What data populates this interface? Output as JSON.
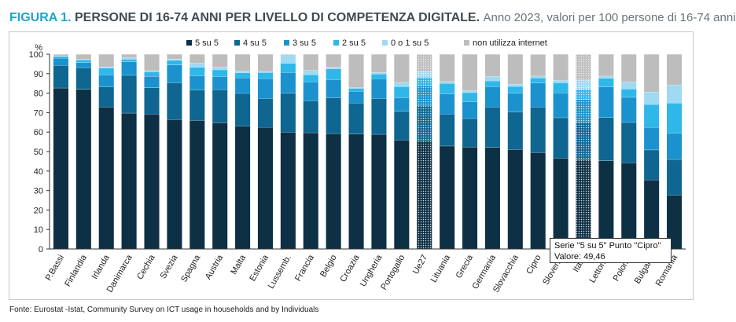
{
  "header": {
    "figure_label": "FIGURA 1.",
    "title": "PERSONE DI 16-74 ANNI PER LIVELLO DI COMPETENZA DIGITALE.",
    "subtitle": "Anno 2023, valori per 100 persone di 16-74 anni"
  },
  "source": "Fonte: Eurostat -Istat, Community Survey on ICT usage in households and by Individuals",
  "tooltip": {
    "line1": "Serie \"5 su 5\" Punto \"Cipro\"",
    "line2": "Valore: 49,46"
  },
  "chart_data": {
    "type": "bar",
    "stacked": true,
    "ylabel": "%",
    "ylim": [
      0,
      100
    ],
    "yticks": [
      "0",
      "10",
      "20",
      "30",
      "40",
      "50",
      "60",
      "70",
      "80",
      "90",
      "100"
    ],
    "grid": false,
    "legend_position": "top",
    "highlighted_categories": [
      "Ue27",
      "Italia"
    ],
    "categories": [
      "P.Bassi",
      "Finlandia",
      "Irlanda",
      "Danimarca",
      "Cechia",
      "Svezia",
      "Spagna",
      "Austria",
      "Malta",
      "Estonia",
      "Lussemb.",
      "Francia",
      "Belgio",
      "Croazia",
      "Ungheria",
      "Portogallo",
      "Ue27",
      "Lituania",
      "Grecia",
      "Germania",
      "Slovacchia",
      "Cipro",
      "Slovenia",
      "Italia",
      "Lettonia",
      "Polonia",
      "Bulgaria",
      "Romania"
    ],
    "series": [
      {
        "name": "5 su 5",
        "color": "#0d3045",
        "values": [
          82.7,
          82.0,
          72.9,
          69.8,
          69.3,
          66.5,
          66.0,
          64.8,
          63.0,
          62.5,
          60.0,
          59.7,
          59.3,
          59.0,
          58.9,
          56.0,
          55.6,
          52.9,
          52.4,
          52.2,
          51.2,
          49.46,
          46.7,
          45.8,
          45.3,
          44.3,
          35.5,
          27.7
        ]
      },
      {
        "name": "4 su 5",
        "color": "#0e6691",
        "values": [
          11.6,
          11.0,
          10.4,
          19.4,
          13.5,
          18.8,
          15.6,
          17.0,
          16.9,
          14.8,
          20.0,
          16.5,
          18.3,
          15.9,
          18.4,
          14.7,
          18.1,
          16.3,
          14.6,
          20.7,
          19.2,
          23.5,
          20.7,
          19.3,
          22.2,
          20.7,
          15.4,
          18.3
        ]
      },
      {
        "name": "3 su 5",
        "color": "#1b92cd",
        "values": [
          3.7,
          2.7,
          6.2,
          6.9,
          5.9,
          9.2,
          7.4,
          6.8,
          8.0,
          10.2,
          10.7,
          9.6,
          9.3,
          6.0,
          10.1,
          7.0,
          10.2,
          10.4,
          8.7,
          10.5,
          9.6,
          12.3,
          12.8,
          11.7,
          15.7,
          12.9,
          11.5,
          13.5
        ]
      },
      {
        "name": "2 su 5",
        "color": "#2fb7ea",
        "values": [
          0.9,
          1.4,
          3.4,
          1.3,
          2.3,
          2.4,
          4.3,
          3.4,
          2.6,
          3.1,
          4.7,
          3.7,
          5.6,
          1.6,
          2.5,
          5.7,
          4.2,
          5.4,
          4.6,
          2.9,
          3.5,
          2.6,
          5.1,
          5.2,
          4.4,
          4.3,
          11.8,
          15.4
        ]
      },
      {
        "name": "0  o 1 su 5",
        "color": "#9fd9f2",
        "values": [
          0.3,
          0.3,
          0.6,
          0.9,
          0.6,
          0.6,
          2.2,
          1.5,
          1.0,
          0.6,
          4.3,
          2.3,
          1.0,
          0.4,
          0.8,
          2.2,
          3.0,
          1.0,
          1.1,
          2.3,
          1.2,
          1.0,
          1.4,
          4.9,
          1.2,
          3.6,
          6.4,
          9.4
        ]
      },
      {
        "name": "non utilizza internet",
        "color": "#bdbdbd",
        "values": [
          0.8,
          2.6,
          6.5,
          1.7,
          8.4,
          2.5,
          4.5,
          6.5,
          8.5,
          8.8,
          0.3,
          8.2,
          6.5,
          17.1,
          9.3,
          14.4,
          8.9,
          14.0,
          18.6,
          11.4,
          15.3,
          11.1,
          13.3,
          13.1,
          11.2,
          14.2,
          19.4,
          15.7
        ]
      }
    ]
  }
}
